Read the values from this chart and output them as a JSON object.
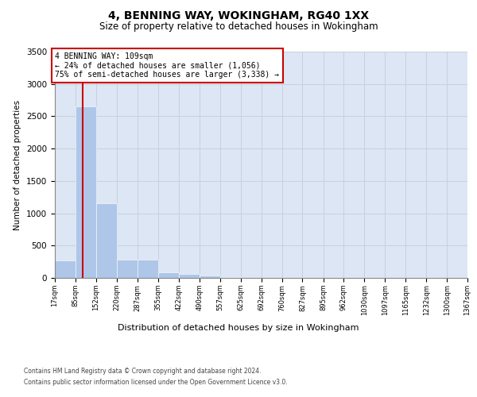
{
  "title": "4, BENNING WAY, WOKINGHAM, RG40 1XX",
  "subtitle": "Size of property relative to detached houses in Wokingham",
  "xlabel": "Distribution of detached houses by size in Wokingham",
  "ylabel": "Number of detached properties",
  "bar_values": [
    270,
    2650,
    1150,
    285,
    285,
    90,
    60,
    40,
    15,
    5,
    2,
    1,
    0,
    0,
    0,
    0,
    0,
    0,
    0,
    0
  ],
  "bin_edges": [
    17,
    85,
    152,
    220,
    287,
    355,
    422,
    490,
    557,
    625,
    692,
    760,
    827,
    895,
    962,
    1030,
    1097,
    1165,
    1232,
    1300,
    1367
  ],
  "tick_labels": [
    "17sqm",
    "85sqm",
    "152sqm",
    "220sqm",
    "287sqm",
    "355sqm",
    "422sqm",
    "490sqm",
    "557sqm",
    "625sqm",
    "692sqm",
    "760sqm",
    "827sqm",
    "895sqm",
    "962sqm",
    "1030sqm",
    "1097sqm",
    "1165sqm",
    "1232sqm",
    "1300sqm",
    "1367sqm"
  ],
  "bar_color": "#aec6e8",
  "property_size": 109,
  "red_line_color": "#cc0000",
  "annotation_title": "4 BENNING WAY: 109sqm",
  "annotation_line1": "← 24% of detached houses are smaller (1,056)",
  "annotation_line2": "75% of semi-detached houses are larger (3,338) →",
  "annotation_box_color": "#ffffff",
  "annotation_box_edge": "#cc0000",
  "ylim": [
    0,
    3500
  ],
  "yticks": [
    0,
    500,
    1000,
    1500,
    2000,
    2500,
    3000,
    3500
  ],
  "grid_color": "#c8d0dc",
  "bg_color": "#dce6f5",
  "footnote1": "Contains HM Land Registry data © Crown copyright and database right 2024.",
  "footnote2": "Contains public sector information licensed under the Open Government Licence v3.0."
}
